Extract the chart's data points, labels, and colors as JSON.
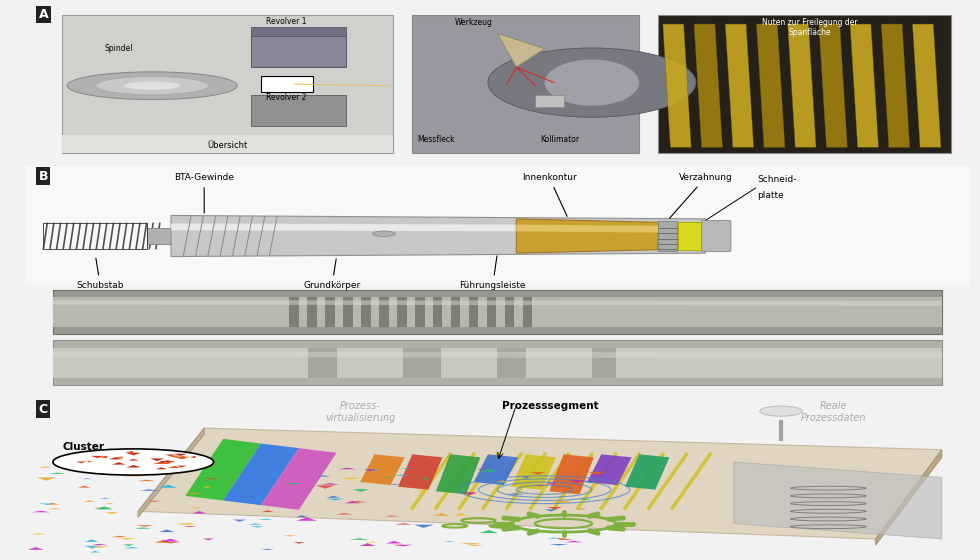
{
  "bg_color": "#f2f2f2",
  "white": "#ffffff",
  "label_A": "A",
  "label_B": "B",
  "label_C": "C",
  "panel_label_fontsize": 9,
  "panel_A": {
    "sub1_bg": "#c8c8c8",
    "sub1_title": "Übersicht",
    "sub1_labels": [
      "Spindel",
      "Revolver 1",
      "Revolver 2"
    ],
    "sub2_bg": "#a8a8b0",
    "sub2_labels": [
      "Werkzeug",
      "Messfleck",
      "Kollimator"
    ],
    "sub3_bg": "#383030",
    "sub3_text": "Nuten zur Freilegung der\nSpanfläche",
    "sub3_text_color": "#ffffff"
  },
  "panel_B": {
    "labels_top": [
      "BTA-Gewinde",
      "Innenkontur",
      "Verzahnung"
    ],
    "labels_bottom": [
      "Schubstab",
      "Grundkörper",
      "Führungsleiste"
    ],
    "label_right": [
      "Schneid-",
      "platte"
    ],
    "bar_color": "#c0c0c0",
    "gold_color": "#c8a030",
    "yellow_color": "#d8d418",
    "photo1_color": "#a0a090",
    "photo2_color": "#b0b0a8"
  },
  "panel_C": {
    "labels": [
      "Cluster",
      "Prozess-\nvirtualisierung",
      "Prozesssegment",
      "Reale\nProzessdaten"
    ],
    "platform_color": "#d8c8b0",
    "scatter_colors": [
      "#f0a020",
      "#e06010",
      "#20b0e0",
      "#4070d0",
      "#d020b0",
      "#20c060",
      "#e04040"
    ],
    "gear_color": "#80b040",
    "brain_color": "#80b040"
  }
}
